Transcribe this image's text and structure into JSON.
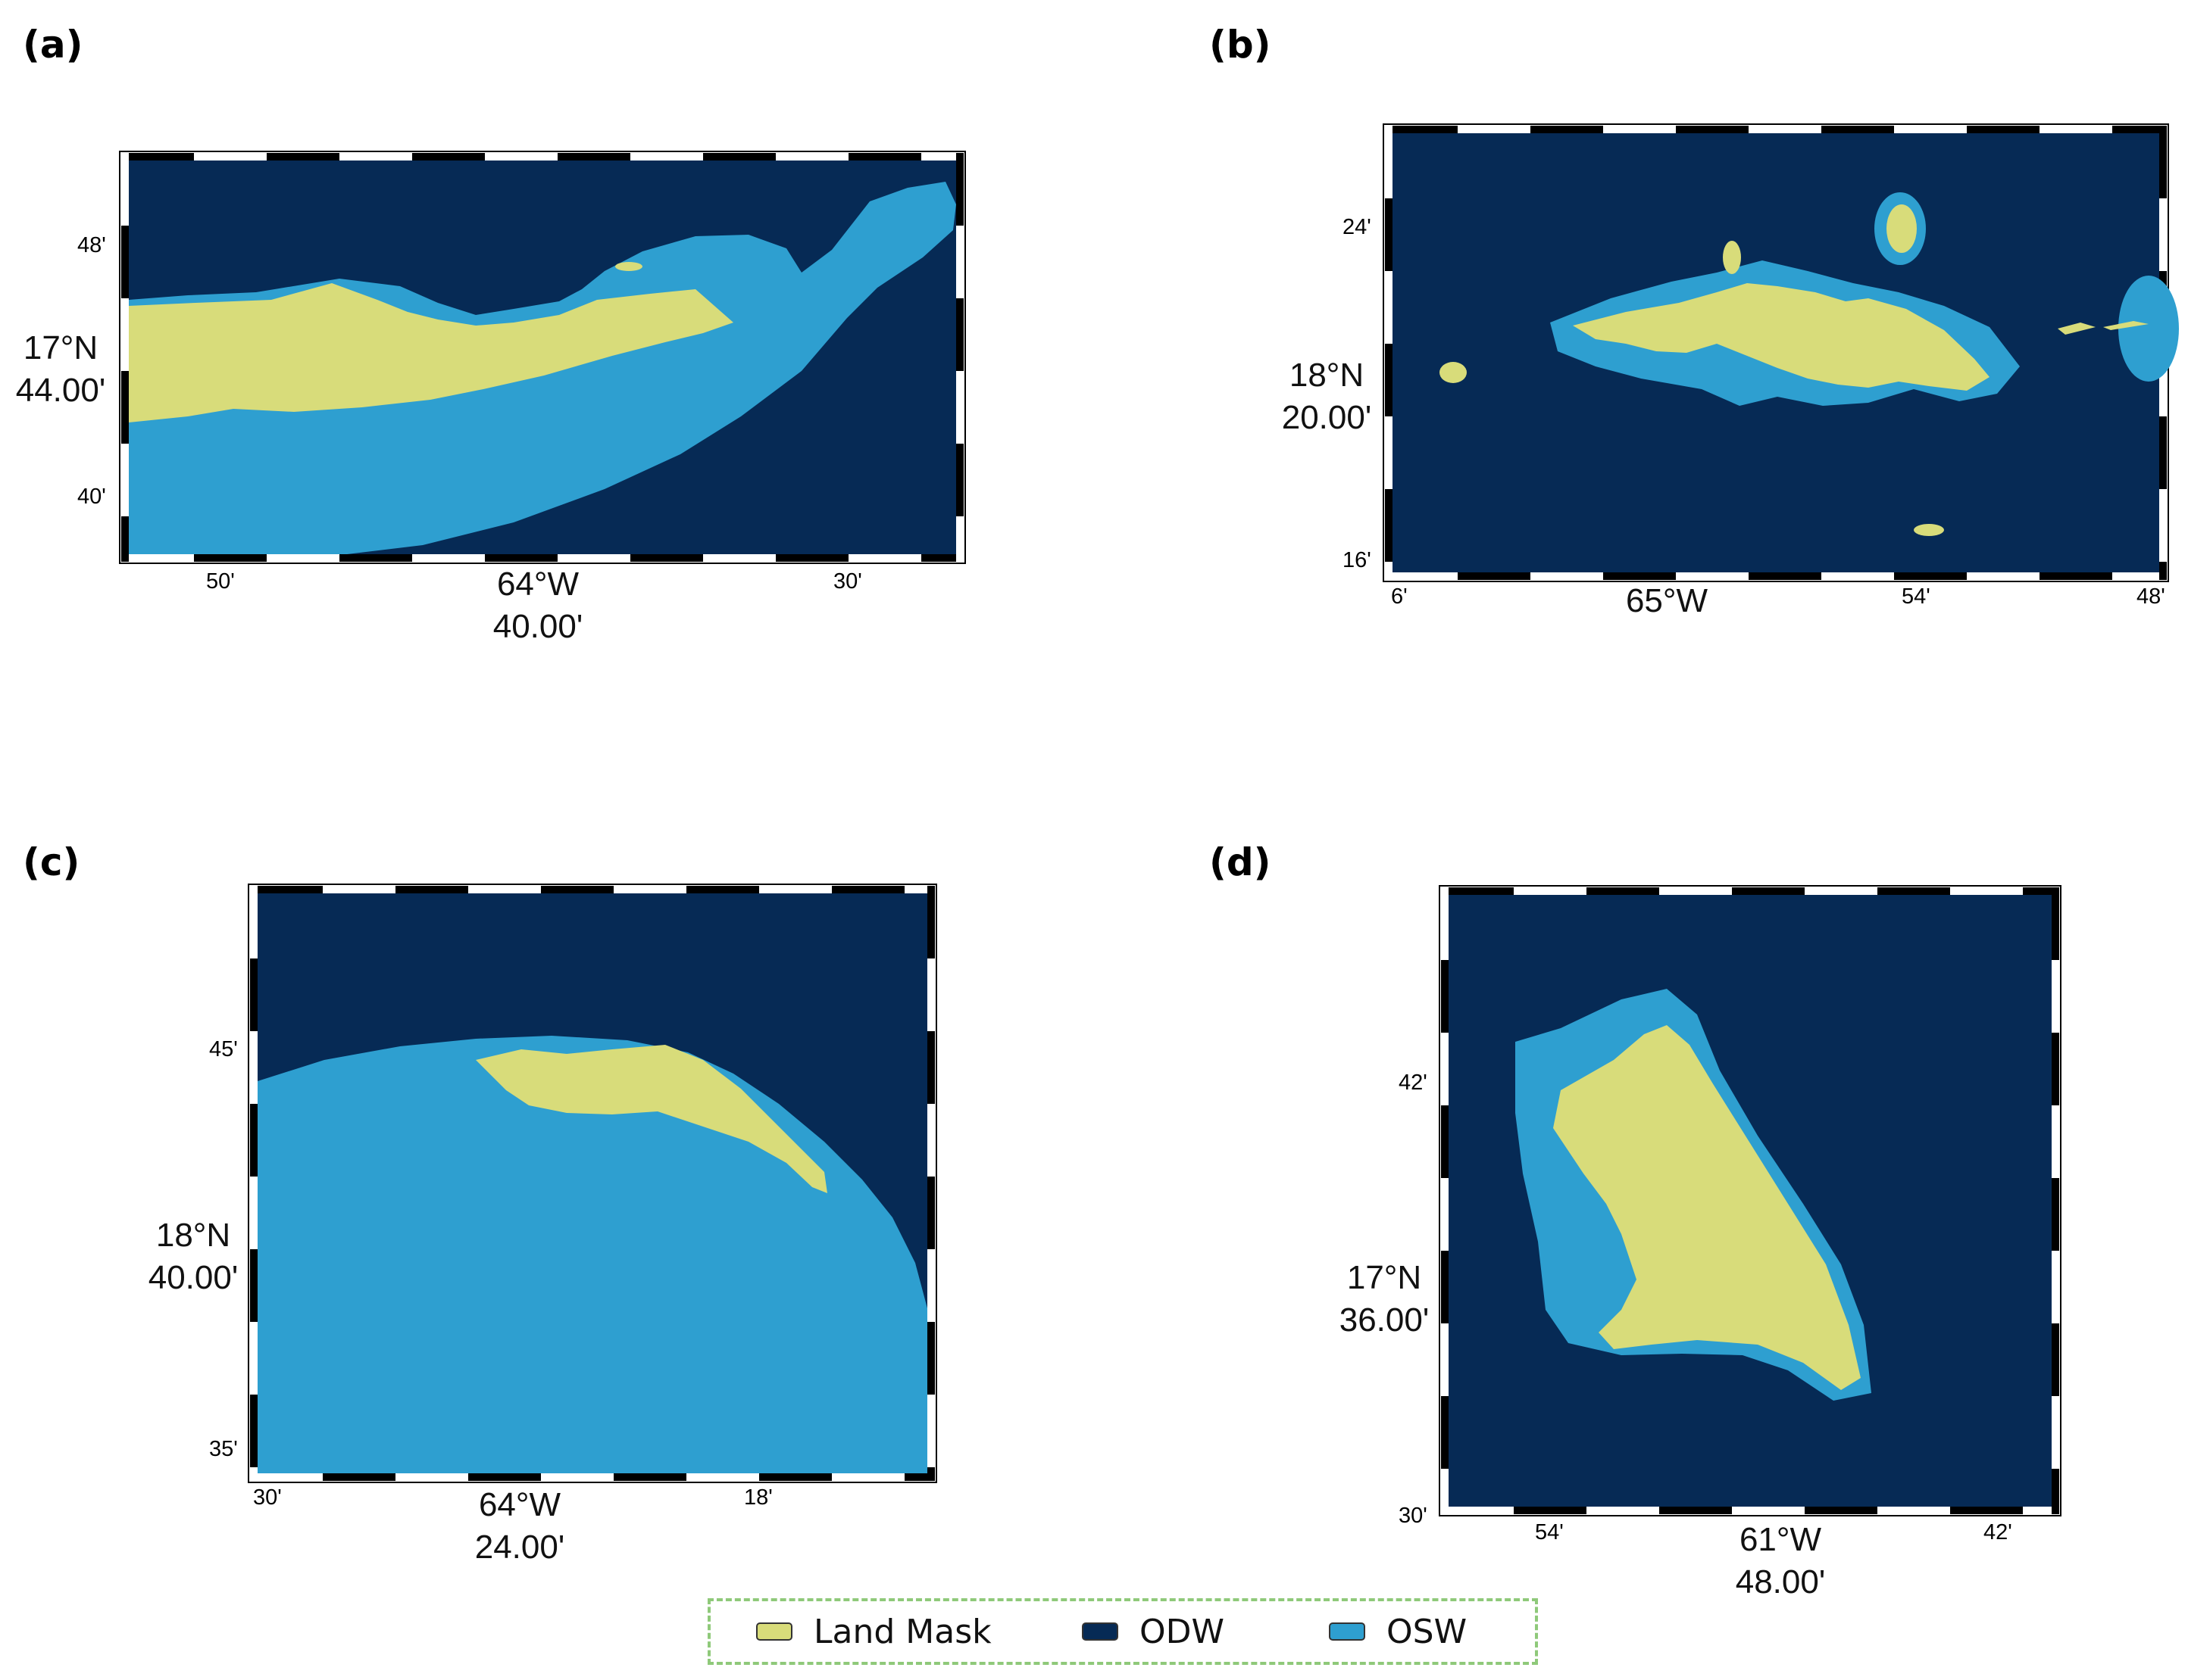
{
  "colors": {
    "land": "#d8dc7a",
    "odw": "#062a55",
    "osw": "#2e9fd0",
    "legend_border": "#8fc97a"
  },
  "panels": [
    {
      "label": "(a)",
      "lat_ticks": [
        "48'",
        "40'"
      ],
      "lat_center": [
        "17°N",
        "44.00'"
      ],
      "lon_ticks": [
        "50'",
        "30'"
      ],
      "lon_center": [
        "64°W",
        "40.00'"
      ]
    },
    {
      "label": "(b)",
      "lat_ticks": [
        "24'",
        "16'"
      ],
      "lat_center": [
        "18°N",
        "20.00'"
      ],
      "lon_ticks": [
        "6'",
        "54'",
        "48'"
      ],
      "lon_center": [
        "65°W"
      ]
    },
    {
      "label": "(c)",
      "lat_ticks": [
        "45'",
        "35'"
      ],
      "lat_center": [
        "18°N",
        "40.00'"
      ],
      "lon_ticks": [
        "30'",
        "18'"
      ],
      "lon_center": [
        "64°W",
        "24.00'"
      ]
    },
    {
      "label": "(d)",
      "lat_ticks": [
        "42'",
        "30'"
      ],
      "lat_center": [
        "17°N",
        "36.00'"
      ],
      "lon_ticks": [
        "54'",
        "42'"
      ],
      "lon_center": [
        "61°W",
        "48.00'"
      ]
    }
  ],
  "legend": [
    {
      "label": "Land Mask",
      "color": "#d8dc7a"
    },
    {
      "label": "ODW",
      "color": "#062a55"
    },
    {
      "label": "OSW",
      "color": "#2e9fd0"
    }
  ]
}
